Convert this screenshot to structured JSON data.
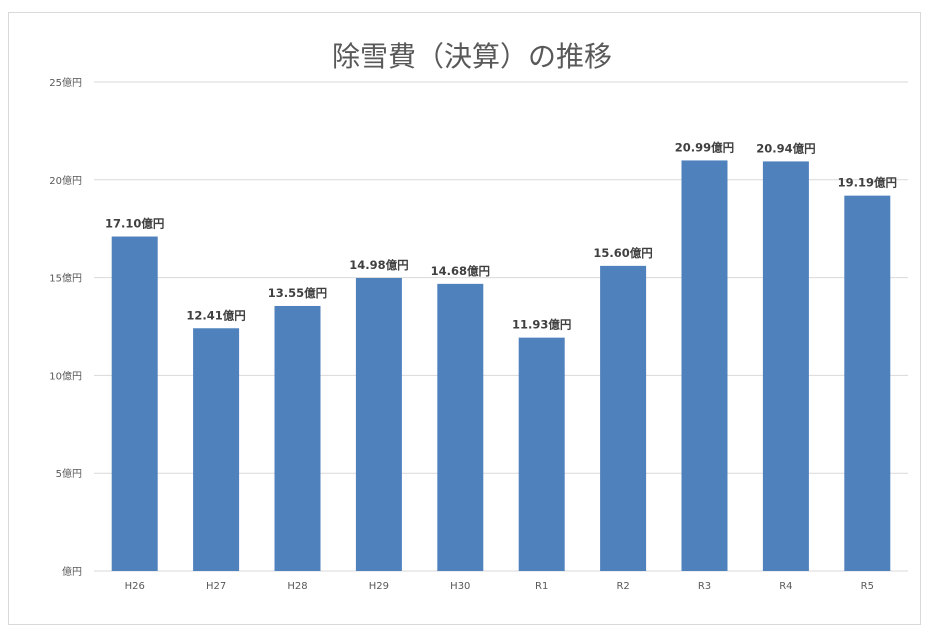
{
  "chart_data": {
    "type": "bar",
    "title": "除雪費（決算）の推移",
    "xlabel": "",
    "ylabel": "",
    "categories": [
      "H26",
      "H27",
      "H28",
      "H29",
      "H30",
      "R1",
      "R2",
      "R3",
      "R4",
      "R5"
    ],
    "values": [
      17.1,
      12.41,
      13.55,
      14.98,
      14.68,
      11.93,
      15.6,
      20.99,
      20.94,
      19.19
    ],
    "data_labels": [
      "17.10億円",
      "12.41億円",
      "13.55億円",
      "14.98億円",
      "14.68億円",
      "11.93億円",
      "15.60億円",
      "20.99億円",
      "20.94億円",
      "19.19億円"
    ],
    "ylim": [
      0,
      25
    ],
    "yticks": [
      0,
      5,
      10,
      15,
      20,
      25
    ],
    "ytick_labels": [
      "億円",
      "5億円",
      "10億円",
      "15億円",
      "20億円",
      "25億円"
    ],
    "grid": true,
    "legend": "none",
    "bar_color": "#4f81bd"
  }
}
